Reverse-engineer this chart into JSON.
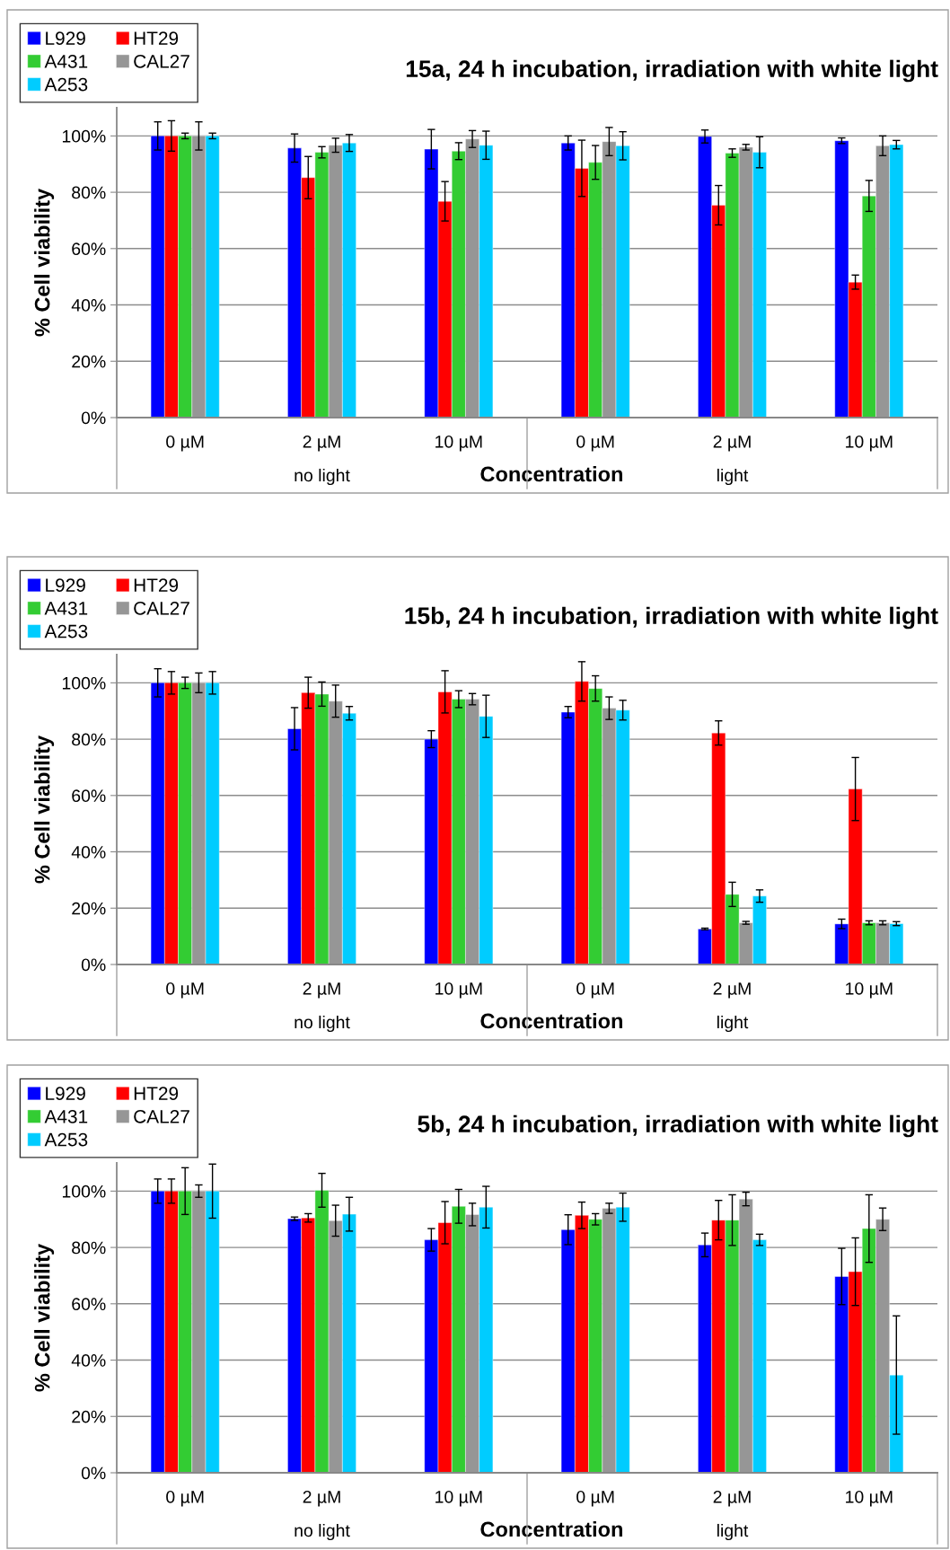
{
  "chart_data": [
    {
      "type": "bar",
      "title": "15a, 24 h incubation, irradiation with white light",
      "xlabel": "Concentration",
      "ylabel": "% Cell viability",
      "categories": [
        "0 µM",
        "2 µM",
        "10 µM",
        "0 µM",
        "2 µM",
        "10 µM"
      ],
      "annotations": [
        "no light",
        "light"
      ],
      "ylim": [
        0,
        110
      ],
      "yticks": [
        {
          "value": 0,
          "label": "0%"
        },
        {
          "value": 20,
          "label": "20%"
        },
        {
          "value": 40,
          "label": "40%"
        },
        {
          "value": 60,
          "label": "60%"
        },
        {
          "value": 80,
          "label": "80%"
        },
        {
          "value": 100,
          "label": "100%"
        }
      ],
      "grid": "y",
      "legend": "top left",
      "series": [
        {
          "name": "L929",
          "color": "#0000ff",
          "values": [
            100,
            95.7,
            95.3,
            97.5,
            99.8,
            98.3
          ],
          "errors": [
            5,
            5,
            7,
            2.5,
            2.3,
            1
          ]
        },
        {
          "name": "HT29",
          "color": "#ff0000",
          "values": [
            100,
            85.2,
            76.8,
            88.5,
            75.4,
            48.1
          ],
          "errors": [
            5.4,
            7.5,
            7,
            10,
            7,
            2.5
          ]
        },
        {
          "name": "A431",
          "color": "#33cc33",
          "values": [
            100,
            94.2,
            94.6,
            90.6,
            93.9,
            78.7
          ],
          "errors": [
            1,
            2,
            3,
            6,
            1.5,
            5.5
          ]
        },
        {
          "name": "CAL27",
          "color": "#969696",
          "values": [
            100,
            96.7,
            98.9,
            98,
            96,
            96.5
          ],
          "errors": [
            5,
            2.5,
            3,
            5,
            1,
            3.5
          ]
        },
        {
          "name": "A253",
          "color": "#00ccff",
          "values": [
            100,
            97.5,
            96.7,
            96.5,
            94.2,
            96.9
          ],
          "errors": [
            1,
            3,
            5,
            5,
            5.5,
            1.5
          ]
        }
      ]
    },
    {
      "type": "bar",
      "title": "15b, 24 h incubation, irradiation with white light",
      "xlabel": "Concentration",
      "ylabel": "% Cell viability",
      "categories": [
        "0 µM",
        "2 µM",
        "10 µM",
        "0 µM",
        "2 µM",
        "10 µM"
      ],
      "annotations": [
        "no light",
        "light"
      ],
      "ylim": [
        0,
        110
      ],
      "yticks": [
        {
          "value": 0,
          "label": "0%"
        },
        {
          "value": 20,
          "label": "20%"
        },
        {
          "value": 40,
          "label": "40%"
        },
        {
          "value": 60,
          "label": "60%"
        },
        {
          "value": 80,
          "label": "80%"
        },
        {
          "value": 100,
          "label": "100%"
        }
      ],
      "grid": "y",
      "legend": "top left",
      "series": [
        {
          "name": "L929",
          "color": "#0000ff",
          "values": [
            100,
            83.7,
            80,
            89.6,
            12.6,
            14.4
          ],
          "errors": [
            5,
            7.5,
            3,
            2,
            0.3,
            1.7
          ]
        },
        {
          "name": "HT29",
          "color": "#ff0000",
          "values": [
            100,
            96.5,
            96.8,
            100.5,
            82.2,
            62.3
          ],
          "errors": [
            4,
            5.5,
            7.5,
            7,
            4.3,
            11.2
          ]
        },
        {
          "name": "A431",
          "color": "#33cc33",
          "values": [
            100,
            96,
            94.2,
            98,
            24.9,
            14.8
          ],
          "errors": [
            2,
            4.3,
            3,
            4.5,
            4.3,
            0.7
          ]
        },
        {
          "name": "CAL27",
          "color": "#969696",
          "values": [
            100,
            93.5,
            94.2,
            91,
            14.8,
            14.8
          ],
          "errors": [
            3.5,
            5.7,
            2,
            4,
            0.5,
            0.7
          ]
        },
        {
          "name": "A253",
          "color": "#00ccff",
          "values": [
            100,
            89.2,
            88.1,
            90.3,
            24.3,
            14.5
          ],
          "errors": [
            4,
            2.4,
            7.5,
            3.5,
            2.2,
            0.7
          ]
        }
      ]
    },
    {
      "type": "bar",
      "title": "5b, 24 h incubation, irradiation with white light",
      "xlabel": "Concentration",
      "ylabel": "% Cell viability",
      "categories": [
        "0 µM",
        "2 µM",
        "10 µM",
        "0 µM",
        "2 µM",
        "10 µM"
      ],
      "annotations": [
        "no light",
        "light"
      ],
      "ylim": [
        0,
        110
      ],
      "yticks": [
        {
          "value": 0,
          "label": "0%"
        },
        {
          "value": 20,
          "label": "20%"
        },
        {
          "value": 40,
          "label": "40%"
        },
        {
          "value": 60,
          "label": "60%"
        },
        {
          "value": 80,
          "label": "80%"
        },
        {
          "value": 100,
          "label": "100%"
        }
      ],
      "grid": "y",
      "legend": "top left",
      "series": [
        {
          "name": "L929",
          "color": "#0000ff",
          "values": [
            100,
            90.2,
            82.7,
            86.3,
            80.9,
            69.7
          ],
          "errors": [
            4.3,
            0.6,
            4,
            5.3,
            4.2,
            10
          ]
        },
        {
          "name": "HT29",
          "color": "#ff0000",
          "values": [
            100,
            90.5,
            88.8,
            91.4,
            89.7,
            71.4
          ],
          "errors": [
            4.3,
            1.5,
            7.5,
            4.7,
            7,
            12
          ]
        },
        {
          "name": "A431",
          "color": "#33cc33",
          "values": [
            100,
            100.3,
            94.6,
            90,
            89.7,
            86.7
          ],
          "errors": [
            8.3,
            6,
            6,
            2,
            9,
            12
          ]
        },
        {
          "name": "CAL27",
          "color": "#969696",
          "values": [
            100,
            89.5,
            91.7,
            93.9,
            97.2,
            90
          ],
          "errors": [
            2.2,
            5.5,
            4,
            1.8,
            2.4,
            4
          ]
        },
        {
          "name": "A253",
          "color": "#00ccff",
          "values": [
            100,
            91.8,
            94.3,
            94.3,
            82.7,
            34.7
          ],
          "errors": [
            9.6,
            6,
            7.4,
            5,
            2,
            21
          ]
        }
      ]
    }
  ]
}
